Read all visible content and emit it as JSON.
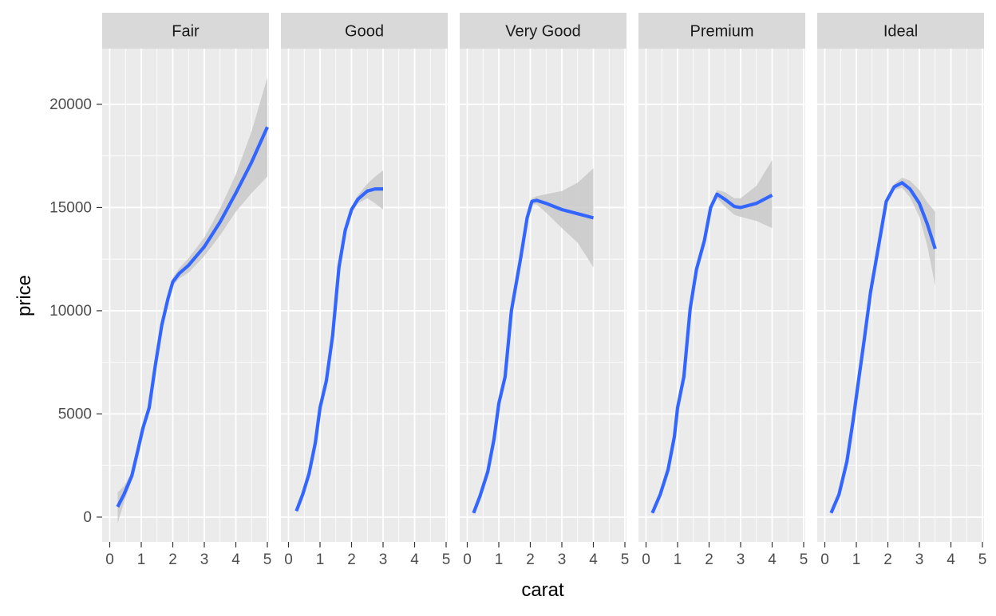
{
  "chart_data": {
    "type": "line",
    "layout": "facets",
    "xlabel": "carat",
    "ylabel": "price",
    "xlim": [
      0,
      5
    ],
    "ylim": [
      -1200,
      22700
    ],
    "x_ticks": [
      0,
      1,
      2,
      3,
      4,
      5
    ],
    "y_ticks": [
      0,
      5000,
      10000,
      15000,
      20000
    ],
    "grid": true,
    "colors": {
      "line": "#3366FF",
      "ribbon": "#c9c9c9",
      "panel": "#EBEBEB",
      "strip": "#D9D9D9",
      "grid": "#ffffff",
      "axis_text": "#4D4D4D"
    },
    "facets": [
      {
        "label": "Fair",
        "series": [
          {
            "x": 0.25,
            "y": 500,
            "lo": -300,
            "hi": 1200
          },
          {
            "x": 0.45,
            "y": 1100,
            "lo": 700,
            "hi": 1500
          },
          {
            "x": 0.7,
            "y": 2000,
            "lo": 1800,
            "hi": 2200
          },
          {
            "x": 0.9,
            "y": 3300,
            "lo": 3100,
            "hi": 3500
          },
          {
            "x": 1.05,
            "y": 4300,
            "lo": 4100,
            "hi": 4500
          },
          {
            "x": 1.25,
            "y": 5300,
            "lo": 5100,
            "hi": 5500
          },
          {
            "x": 1.45,
            "y": 7400,
            "lo": 7200,
            "hi": 7600
          },
          {
            "x": 1.65,
            "y": 9300,
            "lo": 9100,
            "hi": 9500
          },
          {
            "x": 1.85,
            "y": 10600,
            "lo": 10400,
            "hi": 10800
          },
          {
            "x": 2.0,
            "y": 11400,
            "lo": 11200,
            "hi": 11600
          },
          {
            "x": 2.2,
            "y": 11800,
            "lo": 11550,
            "hi": 12050
          },
          {
            "x": 2.5,
            "y": 12200,
            "lo": 11850,
            "hi": 12550
          },
          {
            "x": 3.0,
            "y": 13100,
            "lo": 12650,
            "hi": 13550
          },
          {
            "x": 3.5,
            "y": 14300,
            "lo": 13650,
            "hi": 14950
          },
          {
            "x": 4.0,
            "y": 15700,
            "lo": 14800,
            "hi": 16600
          },
          {
            "x": 4.5,
            "y": 17200,
            "lo": 15700,
            "hi": 18700
          },
          {
            "x": 5.0,
            "y": 18900,
            "lo": 16500,
            "hi": 21300
          }
        ]
      },
      {
        "label": "Good",
        "series": [
          {
            "x": 0.25,
            "y": 300,
            "lo": 200,
            "hi": 400
          },
          {
            "x": 0.45,
            "y": 1100,
            "lo": 1000,
            "hi": 1200
          },
          {
            "x": 0.65,
            "y": 2100,
            "lo": 2000,
            "hi": 2200
          },
          {
            "x": 0.85,
            "y": 3600,
            "lo": 3500,
            "hi": 3700
          },
          {
            "x": 1.0,
            "y": 5300,
            "lo": 5200,
            "hi": 5400
          },
          {
            "x": 1.2,
            "y": 6600,
            "lo": 6500,
            "hi": 6700
          },
          {
            "x": 1.4,
            "y": 8800,
            "lo": 8700,
            "hi": 8900
          },
          {
            "x": 1.6,
            "y": 12100,
            "lo": 12000,
            "hi": 12200
          },
          {
            "x": 1.8,
            "y": 13900,
            "lo": 13800,
            "hi": 14000
          },
          {
            "x": 2.0,
            "y": 14900,
            "lo": 14750,
            "hi": 15050
          },
          {
            "x": 2.2,
            "y": 15400,
            "lo": 15200,
            "hi": 15600
          },
          {
            "x": 2.5,
            "y": 15800,
            "lo": 15450,
            "hi": 16150
          },
          {
            "x": 2.75,
            "y": 15900,
            "lo": 15200,
            "hi": 16500
          },
          {
            "x": 3.0,
            "y": 15900,
            "lo": 14900,
            "hi": 16800
          }
        ]
      },
      {
        "label": "Very Good",
        "series": [
          {
            "x": 0.2,
            "y": 200,
            "lo": 100,
            "hi": 300
          },
          {
            "x": 0.4,
            "y": 1000,
            "lo": 900,
            "hi": 1100
          },
          {
            "x": 0.65,
            "y": 2200,
            "lo": 2100,
            "hi": 2300
          },
          {
            "x": 0.85,
            "y": 3800,
            "lo": 3700,
            "hi": 3900
          },
          {
            "x": 1.0,
            "y": 5500,
            "lo": 5400,
            "hi": 5600
          },
          {
            "x": 1.2,
            "y": 6800,
            "lo": 6700,
            "hi": 6900
          },
          {
            "x": 1.4,
            "y": 10000,
            "lo": 9900,
            "hi": 10100
          },
          {
            "x": 1.7,
            "y": 12600,
            "lo": 12500,
            "hi": 12700
          },
          {
            "x": 1.9,
            "y": 14500,
            "lo": 14400,
            "hi": 14600
          },
          {
            "x": 2.05,
            "y": 15300,
            "lo": 15150,
            "hi": 15450
          },
          {
            "x": 2.2,
            "y": 15350,
            "lo": 15150,
            "hi": 15550
          },
          {
            "x": 2.5,
            "y": 15200,
            "lo": 14750,
            "hi": 15650
          },
          {
            "x": 3.0,
            "y": 14900,
            "lo": 14000,
            "hi": 15800
          },
          {
            "x": 3.5,
            "y": 14700,
            "lo": 13300,
            "hi": 16200
          },
          {
            "x": 4.0,
            "y": 14500,
            "lo": 12100,
            "hi": 16900
          }
        ]
      },
      {
        "label": "Premium",
        "series": [
          {
            "x": 0.2,
            "y": 200,
            "lo": 100,
            "hi": 300
          },
          {
            "x": 0.45,
            "y": 1100,
            "lo": 1000,
            "hi": 1200
          },
          {
            "x": 0.7,
            "y": 2300,
            "lo": 2200,
            "hi": 2400
          },
          {
            "x": 0.9,
            "y": 3900,
            "lo": 3800,
            "hi": 4000
          },
          {
            "x": 1.0,
            "y": 5300,
            "lo": 5200,
            "hi": 5400
          },
          {
            "x": 1.2,
            "y": 6800,
            "lo": 6700,
            "hi": 6900
          },
          {
            "x": 1.4,
            "y": 10100,
            "lo": 10000,
            "hi": 10200
          },
          {
            "x": 1.6,
            "y": 12000,
            "lo": 11900,
            "hi": 12100
          },
          {
            "x": 1.85,
            "y": 13400,
            "lo": 13300,
            "hi": 13500
          },
          {
            "x": 2.05,
            "y": 15000,
            "lo": 14850,
            "hi": 15150
          },
          {
            "x": 2.25,
            "y": 15650,
            "lo": 15450,
            "hi": 15850
          },
          {
            "x": 2.5,
            "y": 15400,
            "lo": 15050,
            "hi": 15750
          },
          {
            "x": 2.8,
            "y": 15050,
            "lo": 14650,
            "hi": 15450
          },
          {
            "x": 3.0,
            "y": 15000,
            "lo": 14550,
            "hi": 15450
          },
          {
            "x": 3.5,
            "y": 15200,
            "lo": 14350,
            "hi": 16050
          },
          {
            "x": 4.0,
            "y": 15600,
            "lo": 14000,
            "hi": 17300
          }
        ]
      },
      {
        "label": "Ideal",
        "series": [
          {
            "x": 0.2,
            "y": 200,
            "lo": 100,
            "hi": 300
          },
          {
            "x": 0.45,
            "y": 1100,
            "lo": 1000,
            "hi": 1200
          },
          {
            "x": 0.7,
            "y": 2700,
            "lo": 2600,
            "hi": 2800
          },
          {
            "x": 0.9,
            "y": 4700,
            "lo": 4600,
            "hi": 4800
          },
          {
            "x": 1.05,
            "y": 6400,
            "lo": 6300,
            "hi": 6500
          },
          {
            "x": 1.25,
            "y": 8600,
            "lo": 8500,
            "hi": 8700
          },
          {
            "x": 1.45,
            "y": 10900,
            "lo": 10800,
            "hi": 11000
          },
          {
            "x": 1.7,
            "y": 13100,
            "lo": 13000,
            "hi": 13200
          },
          {
            "x": 1.95,
            "y": 15300,
            "lo": 15200,
            "hi": 15400
          },
          {
            "x": 2.2,
            "y": 16000,
            "lo": 15850,
            "hi": 16150
          },
          {
            "x": 2.45,
            "y": 16200,
            "lo": 15950,
            "hi": 16450
          },
          {
            "x": 2.7,
            "y": 15900,
            "lo": 15500,
            "hi": 16300
          },
          {
            "x": 3.0,
            "y": 15200,
            "lo": 14550,
            "hi": 15850
          },
          {
            "x": 3.25,
            "y": 14200,
            "lo": 13150,
            "hi": 15250
          },
          {
            "x": 3.5,
            "y": 13000,
            "lo": 11200,
            "hi": 14800
          }
        ]
      }
    ]
  }
}
